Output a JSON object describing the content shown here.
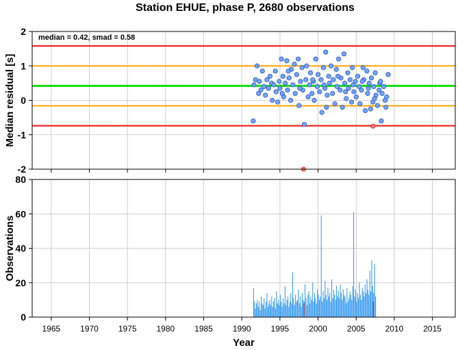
{
  "title": "Station EHUE, phase P, 2680 observations",
  "colors": {
    "red_line": "#ee1111",
    "orange_line": "#ffa500",
    "green_line": "#11dd11",
    "point_fill": "#6ea6f5",
    "point_stroke": "#3050c0",
    "outlier_fill": "#ff7777",
    "bar_fill": "#2f97f2",
    "bar_highlight": "#cc2222",
    "grid": "#c0c0c0",
    "axis": "#000000"
  },
  "chart_data": [
    {
      "type": "scatter",
      "title": "Station EHUE, phase P, 2680 observations",
      "annotation": "median = 0.42, smad = 0.58",
      "xlabel": "",
      "ylabel": "Median residual [s]",
      "xlim": [
        1962.5,
        2018.0
      ],
      "ylim": [
        -2,
        2
      ],
      "yticks": [
        -2,
        -1,
        0,
        1,
        2
      ],
      "xticks": [
        1965,
        1970,
        1975,
        1980,
        1985,
        1990,
        1995,
        2000,
        2005,
        2010,
        2015
      ],
      "grid": true,
      "reference_lines": [
        {
          "name": "median",
          "y": 0.42,
          "color": "green"
        },
        {
          "name": "upper-1-smad",
          "y": 1.0,
          "color": "orange"
        },
        {
          "name": "lower-1-smad",
          "y": -0.16,
          "color": "orange"
        },
        {
          "name": "upper-2-smad",
          "y": 1.58,
          "color": "red"
        },
        {
          "name": "lower-2-smad",
          "y": -0.74,
          "color": "red"
        }
      ],
      "points": [
        [
          1991.5,
          -0.6
        ],
        [
          1991.6,
          0.45
        ],
        [
          1991.8,
          0.6
        ],
        [
          1992.0,
          1.0
        ],
        [
          1992.2,
          0.2
        ],
        [
          1992.3,
          0.55
        ],
        [
          1992.5,
          0.3
        ],
        [
          1992.7,
          0.85
        ],
        [
          1992.9,
          0.4
        ],
        [
          1993.1,
          0.15
        ],
        [
          1993.3,
          0.6
        ],
        [
          1993.5,
          0.35
        ],
        [
          1993.7,
          0.7
        ],
        [
          1993.9,
          0.5
        ],
        [
          1994.0,
          0.0
        ],
        [
          1994.2,
          0.45
        ],
        [
          1994.4,
          0.85
        ],
        [
          1994.5,
          0.25
        ],
        [
          1994.7,
          -0.05
        ],
        [
          1994.9,
          0.55
        ],
        [
          1995.0,
          0.35
        ],
        [
          1995.2,
          1.2
        ],
        [
          1995.4,
          0.7
        ],
        [
          1995.5,
          0.1
        ],
        [
          1995.7,
          0.5
        ],
        [
          1995.9,
          1.15
        ],
        [
          1996.0,
          0.3
        ],
        [
          1996.2,
          0.65
        ],
        [
          1996.4,
          0.0
        ],
        [
          1996.5,
          0.9
        ],
        [
          1996.7,
          0.45
        ],
        [
          1996.9,
          1.05
        ],
        [
          1997.0,
          0.2
        ],
        [
          1997.2,
          0.75
        ],
        [
          1997.4,
          1.2
        ],
        [
          1997.5,
          -0.15
        ],
        [
          1997.7,
          0.55
        ],
        [
          1997.9,
          0.95
        ],
        [
          1998.0,
          0.3
        ],
        [
          1998.2,
          -0.7
        ],
        [
          1998.4,
          0.6
        ],
        [
          1998.5,
          1.0
        ],
        [
          1998.7,
          0.1
        ],
        [
          1998.9,
          0.45
        ],
        [
          1999.0,
          0.8
        ],
        [
          1999.2,
          0.2
        ],
        [
          1999.4,
          0.55
        ],
        [
          1999.5,
          0.0
        ],
        [
          1999.7,
          1.2
        ],
        [
          1999.9,
          0.4
        ],
        [
          2000.0,
          0.75
        ],
        [
          2000.2,
          0.25
        ],
        [
          2000.4,
          0.6
        ],
        [
          2000.5,
          -0.35
        ],
        [
          2000.7,
          0.95
        ],
        [
          2000.9,
          0.35
        ],
        [
          2001.0,
          1.4
        ],
        [
          2001.2,
          0.15
        ],
        [
          2001.4,
          0.7
        ],
        [
          2001.5,
          0.5
        ],
        [
          2001.7,
          1.0
        ],
        [
          2001.9,
          0.2
        ],
        [
          2002.0,
          0.6
        ],
        [
          2002.2,
          -0.1
        ],
        [
          2002.4,
          0.9
        ],
        [
          2002.5,
          0.4
        ],
        [
          2002.7,
          1.2
        ],
        [
          2002.9,
          0.3
        ],
        [
          2003.0,
          0.65
        ],
        [
          2003.2,
          -0.2
        ],
        [
          2003.4,
          1.35
        ],
        [
          2003.5,
          0.5
        ],
        [
          2003.7,
          0.05
        ],
        [
          2003.9,
          0.8
        ],
        [
          2004.0,
          0.35
        ],
        [
          2004.2,
          0.6
        ],
        [
          2004.4,
          -0.05
        ],
        [
          2004.5,
          0.95
        ],
        [
          2004.7,
          0.25
        ],
        [
          2004.9,
          0.55
        ],
        [
          2005.0,
          0.1
        ],
        [
          2005.2,
          0.7
        ],
        [
          2005.4,
          0.4
        ],
        [
          2005.5,
          -0.1
        ],
        [
          2005.7,
          0.3
        ],
        [
          2005.9,
          0.95
        ],
        [
          2006.0,
          0.6
        ],
        [
          2006.2,
          -0.3
        ],
        [
          2006.4,
          0.85
        ],
        [
          2006.5,
          0.2
        ],
        [
          2006.7,
          0.5
        ],
        [
          2006.9,
          -0.25
        ],
        [
          2007.0,
          0.65
        ],
        [
          2007.2,
          -0.05
        ],
        [
          2007.3,
          0.4
        ],
        [
          2007.5,
          0.8
        ],
        [
          2007.6,
          0.15
        ],
        [
          2007.8,
          -0.15
        ],
        [
          2008.0,
          0.3
        ],
        [
          2008.1,
          0.5
        ],
        [
          2008.3,
          -0.6
        ],
        [
          2008.4,
          0.2
        ],
        [
          2008.6,
          0.4
        ],
        [
          2008.8,
          0.0
        ],
        [
          2008.9,
          -0.2
        ],
        [
          2009.0,
          0.1
        ],
        [
          2009.2,
          0.75
        ],
        [
          2008.2,
          0.55
        ],
        [
          1995.3,
          0.2
        ],
        [
          1996.1,
          0.85
        ],
        [
          1997.6,
          0.35
        ],
        [
          1999.3,
          0.6
        ],
        [
          2000.8,
          0.45
        ],
        [
          2002.6,
          0.7
        ],
        [
          2003.6,
          0.25
        ],
        [
          2004.6,
          0.45
        ],
        [
          2005.8,
          0.55
        ],
        [
          2006.6,
          0.35
        ],
        [
          2007.4,
          0.05
        ],
        [
          2001.1,
          -0.2
        ]
      ],
      "outliers": [
        [
          2007.2,
          -0.75
        ],
        [
          1998.1,
          -2.0
        ]
      ]
    },
    {
      "type": "bar",
      "title": "",
      "xlabel": "Year",
      "ylabel": "Observations",
      "xlim": [
        1962.5,
        2018.0
      ],
      "ylim": [
        0,
        80
      ],
      "yticks": [
        0,
        20,
        40,
        60,
        80
      ],
      "xticks": [
        1965,
        1970,
        1975,
        1980,
        1985,
        1990,
        1995,
        2000,
        2005,
        2010,
        2015
      ],
      "grid": true,
      "series": [
        {
          "x_start": 1991.5,
          "x_step": 0.125,
          "values": [
            17,
            9,
            5,
            8,
            10,
            6,
            9,
            4,
            12,
            8,
            7,
            11,
            5,
            9,
            14,
            6,
            8,
            10,
            7,
            12,
            6,
            9,
            11,
            5,
            15,
            8,
            10,
            7,
            13,
            9,
            6,
            11,
            8,
            18,
            7,
            10,
            12,
            6,
            9,
            14,
            8,
            26,
            11,
            7,
            13,
            9,
            10,
            16,
            8,
            12,
            6,
            14,
            10,
            9,
            19,
            11,
            7,
            13,
            15,
            8,
            12,
            10,
            20,
            9,
            14,
            11,
            8,
            16,
            13,
            10,
            12,
            59,
            9,
            15,
            11,
            21,
            13,
            10,
            17,
            12,
            14,
            9,
            22,
            11,
            16,
            13,
            10,
            18,
            12,
            15,
            11,
            19,
            14,
            10,
            16,
            13,
            12,
            8,
            17,
            9,
            11,
            15,
            13,
            10,
            18,
            61,
            12,
            16,
            9,
            14,
            11,
            20,
            13,
            10,
            17,
            15,
            12,
            19,
            14,
            22,
            16,
            13,
            27,
            15,
            33,
            18,
            14,
            31,
            12
          ]
        }
      ],
      "highlight_bars": [
        {
          "x": 1998.1,
          "value": 8
        },
        {
          "x": 2007.2,
          "value": 9
        }
      ]
    }
  ]
}
